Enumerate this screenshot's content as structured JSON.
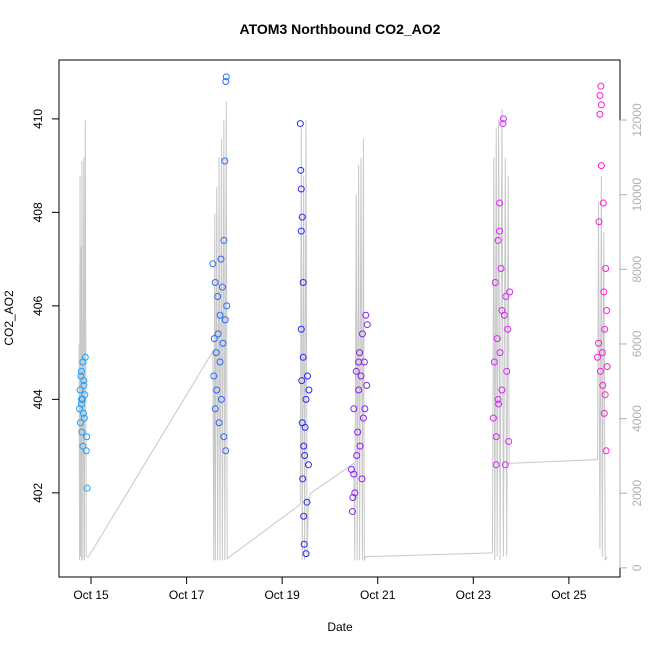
{
  "chart_data": {
    "type": "scatter",
    "title": "ATOM3 Northbound CO2_AO2",
    "x_label": "Date",
    "y_label": "CO2_AO2",
    "xlim": [
      14.33,
      26.07
    ],
    "xticks": [
      {
        "value": 15,
        "label": "Oct 15"
      },
      {
        "value": 17,
        "label": "Oct 17"
      },
      {
        "value": 19,
        "label": "Oct 19"
      },
      {
        "value": 21,
        "label": "Oct 21"
      },
      {
        "value": 23,
        "label": "Oct 23"
      },
      {
        "value": 25,
        "label": "Oct 25"
      }
    ],
    "ylim": [
      400.2,
      411.26
    ],
    "yticks": [
      402,
      404,
      406,
      408,
      410
    ],
    "y2lim": [
      -245,
      13609
    ],
    "y2ticks": [
      0,
      2000,
      4000,
      6000,
      8000,
      10000,
      12000
    ],
    "y2_color": "#b0b0b0",
    "series": [
      {
        "color": "#1aa0ff",
        "x": [
          14.76,
          14.77,
          14.78,
          14.79,
          14.8,
          14.8,
          14.81,
          14.82,
          14.83,
          14.84,
          14.85,
          14.86,
          14.87,
          14.88,
          14.9,
          14.91,
          14.92,
          14.85,
          14.83,
          14.8
        ],
        "values": [
          403.8,
          404.2,
          403.5,
          404.5,
          403.9,
          404.6,
          403.3,
          404.0,
          404.8,
          403.7,
          404.3,
          403.6,
          404.1,
          404.9,
          402.9,
          403.2,
          402.1,
          404.4,
          403.0,
          404.0
        ]
      },
      {
        "color": "#2a6cff",
        "x": [
          17.55,
          17.57,
          17.58,
          17.6,
          17.6,
          17.62,
          17.63,
          17.65,
          17.66,
          17.68,
          17.7,
          17.7,
          17.72,
          17.73,
          17.75,
          17.76,
          17.78,
          17.8,
          17.81,
          17.82,
          17.83,
          17.84,
          17.82,
          17.78
        ],
        "values": [
          406.9,
          404.5,
          405.3,
          406.5,
          403.8,
          405.0,
          404.2,
          406.2,
          405.4,
          403.5,
          404.8,
          405.8,
          407.0,
          404.0,
          406.4,
          405.2,
          403.2,
          409.1,
          405.7,
          410.8,
          410.9,
          406.0,
          402.9,
          407.4
        ]
      },
      {
        "color": "#2828ff",
        "x": [
          19.38,
          19.39,
          19.4,
          19.4,
          19.41,
          19.42,
          19.42,
          19.43,
          19.44,
          19.45,
          19.45,
          19.46,
          19.47,
          19.48,
          19.5,
          19.5,
          19.52,
          19.53,
          19.55,
          19.56,
          19.44,
          19.4
        ],
        "values": [
          409.9,
          408.9,
          408.5,
          405.5,
          404.4,
          407.9,
          403.5,
          402.3,
          404.9,
          401.5,
          403.0,
          400.9,
          402.8,
          403.4,
          400.7,
          404.0,
          401.8,
          404.5,
          402.6,
          404.2,
          406.5,
          407.6
        ]
      },
      {
        "color": "#8a1fff",
        "x": [
          20.45,
          20.47,
          20.5,
          20.52,
          20.55,
          20.56,
          20.58,
          20.6,
          20.62,
          20.63,
          20.65,
          20.67,
          20.68,
          20.7,
          20.72,
          20.73,
          20.75,
          20.77,
          20.78,
          20.6,
          20.5,
          20.48
        ],
        "values": [
          402.5,
          401.6,
          403.8,
          402.0,
          404.6,
          402.8,
          403.3,
          404.2,
          405.0,
          403.0,
          404.5,
          402.3,
          405.4,
          403.6,
          404.8,
          403.8,
          405.8,
          404.3,
          405.6,
          404.8,
          402.4,
          401.9
        ]
      },
      {
        "color": "#dd22ff",
        "x": [
          23.42,
          23.44,
          23.46,
          23.48,
          23.5,
          23.52,
          23.53,
          23.55,
          23.56,
          23.58,
          23.6,
          23.62,
          23.63,
          23.65,
          23.67,
          23.68,
          23.7,
          23.72,
          23.74,
          23.76,
          23.55,
          23.52,
          23.6,
          23.48
        ],
        "values": [
          403.6,
          404.8,
          406.5,
          402.6,
          405.3,
          407.4,
          403.9,
          408.2,
          405.0,
          406.8,
          404.2,
          409.9,
          410.0,
          405.8,
          402.6,
          406.2,
          404.6,
          405.5,
          403.1,
          406.3,
          407.6,
          404.0,
          405.9,
          403.2
        ]
      },
      {
        "color": "#ff1fd0",
        "x": [
          25.6,
          25.62,
          25.63,
          25.65,
          25.66,
          25.67,
          25.68,
          25.7,
          25.71,
          25.72,
          25.73,
          25.74,
          25.75,
          25.76,
          25.77,
          25.78,
          25.79,
          25.8,
          25.68,
          25.65
        ],
        "values": [
          404.9,
          405.2,
          407.8,
          410.1,
          404.6,
          410.7,
          409.0,
          405.0,
          404.3,
          408.2,
          406.3,
          403.7,
          405.5,
          404.1,
          406.8,
          402.9,
          405.9,
          404.7,
          410.3,
          410.5
        ]
      },
      {
        "type": "line",
        "axis": "y2",
        "color": "#c8c8c8",
        "x": [
          14.75,
          14.76,
          14.77,
          14.78,
          14.79,
          14.8,
          14.81,
          14.83,
          14.85,
          14.86,
          14.88,
          14.9,
          14.95,
          17.55,
          17.57,
          17.59,
          17.6,
          17.63,
          17.65,
          17.68,
          17.7,
          17.73,
          17.75,
          17.78,
          17.8,
          17.83,
          17.85,
          19.38,
          19.4,
          19.42,
          19.45,
          19.47,
          19.5,
          19.52,
          19.55,
          19.6,
          20.5,
          20.52,
          20.55,
          20.57,
          20.6,
          20.62,
          20.65,
          20.68,
          20.7,
          20.72,
          20.75,
          23.4,
          23.43,
          23.45,
          23.48,
          23.5,
          23.53,
          23.56,
          23.6,
          23.63,
          23.67,
          23.7,
          23.73,
          23.75,
          25.6,
          25.62,
          25.65,
          25.68,
          25.7,
          25.73,
          25.76,
          25.8
        ],
        "values": [
          6000,
          200,
          10500,
          300,
          8600,
          200,
          10900,
          200,
          11000,
          200,
          12000,
          300,
          300,
          5800,
          200,
          9500,
          200,
          10200,
          200,
          11000,
          200,
          11500,
          200,
          12000,
          200,
          12500,
          250,
          1700,
          11800,
          200,
          10500,
          200,
          12000,
          300,
          1800,
          2000,
          2800,
          200,
          10000,
          200,
          10800,
          200,
          11000,
          200,
          11500,
          200,
          300,
          400,
          11000,
          200,
          11800,
          300,
          12000,
          200,
          12300,
          300,
          11000,
          300,
          10500,
          2800,
          2900,
          9800,
          500,
          10500,
          300,
          9000,
          200,
          300
        ]
      }
    ]
  }
}
